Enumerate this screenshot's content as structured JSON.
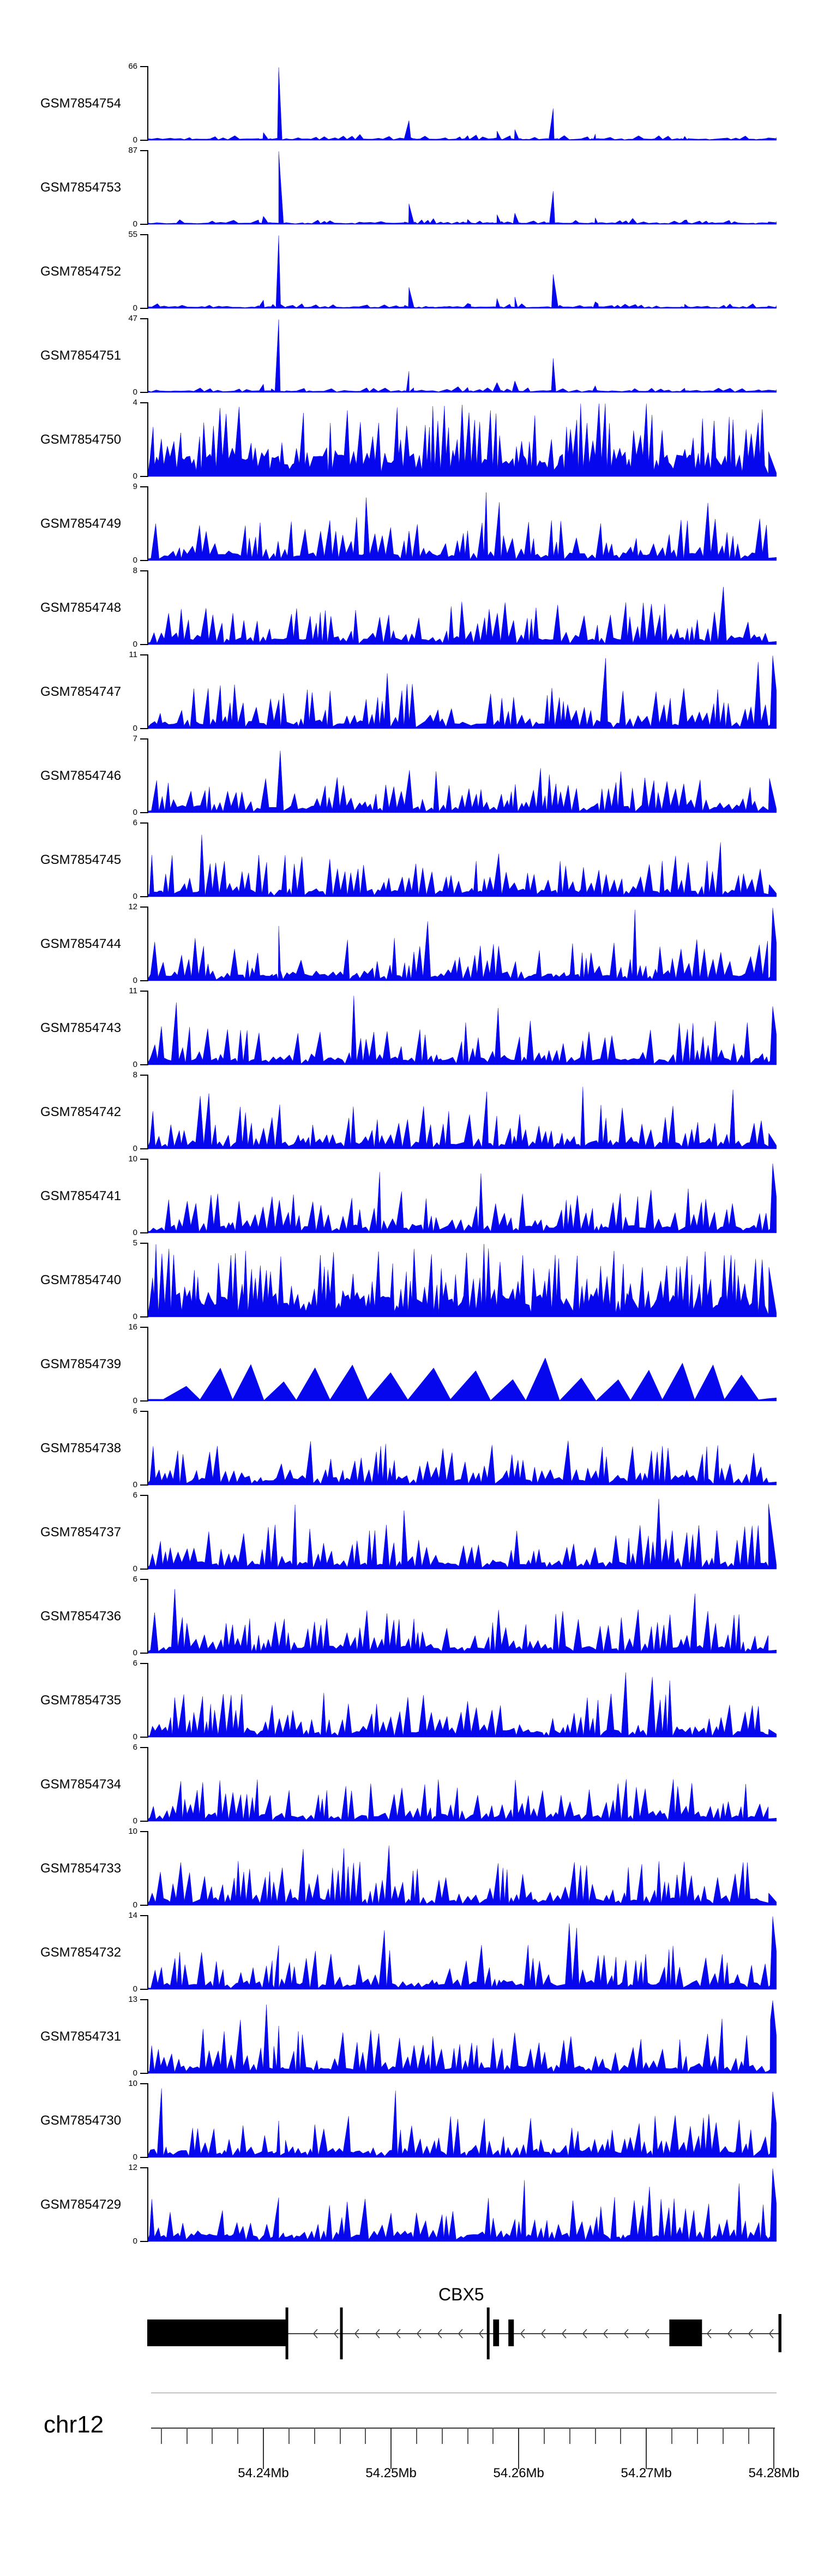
{
  "chart_data": {
    "type": "area",
    "description": "Genome browser coverage tracks",
    "signal_color": "#0707ee",
    "genome": {
      "chromosome": "chr12",
      "x_unit": "Mb",
      "x_range": [
        54.2309,
        54.2802
      ],
      "major_ticks": [
        54.24,
        54.25,
        54.26,
        54.27,
        54.28
      ],
      "major_tick_labels": [
        "54.24Mb",
        "54.25Mb",
        "54.26Mb",
        "54.27Mb",
        "54.28Mb"
      ],
      "minor_tick_step": 0.002
    },
    "shared_peaks_sparse": [
      {
        "mb": 54.24,
        "f": 0.1,
        "w": 8
      },
      {
        "mb": 54.2412,
        "f": 1.0,
        "w": 14
      },
      {
        "mb": 54.2514,
        "f": 0.26,
        "w": 9
      },
      {
        "mb": 54.256,
        "f": 0.06,
        "w": 6
      },
      {
        "mb": 54.2583,
        "f": 0.12,
        "w": 7
      },
      {
        "mb": 54.2597,
        "f": 0.14,
        "w": 7
      },
      {
        "mb": 54.2627,
        "f": 0.42,
        "w": 9
      },
      {
        "mb": 54.266,
        "f": 0.08,
        "w": 6
      },
      {
        "mb": 54.273,
        "f": 0.05,
        "w": 6
      },
      {
        "mb": 54.2806,
        "f": 0.13,
        "w": 10
      }
    ],
    "tracks": [
      {
        "label": "GSM7854754",
        "ymin": 0,
        "ymax": 66,
        "profile": "sparse",
        "seed": 11
      },
      {
        "label": "GSM7854753",
        "ymin": 0,
        "ymax": 87,
        "profile": "sparse",
        "seed": 23
      },
      {
        "label": "GSM7854752",
        "ymin": 0,
        "ymax": 55,
        "profile": "sparse",
        "seed": 37
      },
      {
        "label": "GSM7854751",
        "ymin": 0,
        "ymax": 47,
        "profile": "sparse",
        "seed": 49
      },
      {
        "label": "GSM7854750",
        "ymin": 0,
        "ymax": 4,
        "profile": "densefull",
        "seed": 61
      },
      {
        "label": "GSM7854749",
        "ymin": 0,
        "ymax": 9,
        "profile": "dense",
        "seed": 73
      },
      {
        "label": "GSM7854748",
        "ymin": 0,
        "ymax": 8,
        "profile": "dense",
        "seed": 85
      },
      {
        "label": "GSM7854747",
        "ymin": 0,
        "ymax": 11,
        "profile": "dense",
        "seed": 97,
        "edge_spike": 1.0
      },
      {
        "label": "GSM7854746",
        "ymin": 0,
        "ymax": 7,
        "profile": "dense",
        "seed": 109
      },
      {
        "label": "GSM7854745",
        "ymin": 0,
        "ymax": 6,
        "profile": "dense",
        "seed": 121
      },
      {
        "label": "GSM7854744",
        "ymin": 0,
        "ymax": 12,
        "profile": "dense",
        "seed": 133,
        "edge_spike": 1.0,
        "promoter_peak": 0.75
      },
      {
        "label": "GSM7854743",
        "ymin": 0,
        "ymax": 11,
        "profile": "dense",
        "seed": 145,
        "edge_spike": 0.8
      },
      {
        "label": "GSM7854742",
        "ymin": 0,
        "ymax": 8,
        "profile": "dense",
        "seed": 157
      },
      {
        "label": "GSM7854741",
        "ymin": 0,
        "ymax": 10,
        "profile": "dense",
        "seed": 169,
        "edge_spike": 0.95
      },
      {
        "label": "GSM7854740",
        "ymin": 0,
        "ymax": 5,
        "profile": "densefull",
        "seed": 181
      },
      {
        "label": "GSM7854739",
        "ymin": 0,
        "ymax": 16,
        "profile": "triangles",
        "seed": 193
      },
      {
        "label": "GSM7854738",
        "ymin": 0,
        "ymax": 6,
        "profile": "dense",
        "seed": 205
      },
      {
        "label": "GSM7854737",
        "ymin": 0,
        "ymax": 6,
        "profile": "dense",
        "seed": 217
      },
      {
        "label": "GSM7854736",
        "ymin": 0,
        "ymax": 6,
        "profile": "dense",
        "seed": 229
      },
      {
        "label": "GSM7854735",
        "ymin": 0,
        "ymax": 6,
        "profile": "dense",
        "seed": 241
      },
      {
        "label": "GSM7854734",
        "ymin": 0,
        "ymax": 6,
        "profile": "dense",
        "seed": 253
      },
      {
        "label": "GSM7854733",
        "ymin": 0,
        "ymax": 10,
        "profile": "dense",
        "seed": 265
      },
      {
        "label": "GSM7854732",
        "ymin": 0,
        "ymax": 14,
        "profile": "dense",
        "seed": 277,
        "edge_spike": 1.0,
        "promoter_peak": 0.6
      },
      {
        "label": "GSM7854731",
        "ymin": 0,
        "ymax": 13,
        "profile": "dense",
        "seed": 289,
        "edge_spike": 1.0,
        "promoter_peak": 0.65
      },
      {
        "label": "GSM7854730",
        "ymin": 0,
        "ymax": 10,
        "profile": "dense",
        "seed": 301,
        "edge_spike": 0.9,
        "promoter_peak": 0.5
      },
      {
        "label": "GSM7854729",
        "ymin": 0,
        "ymax": 12,
        "profile": "dense",
        "seed": 313,
        "edge_spike": 1.0,
        "promoter_peak": 0.6
      }
    ],
    "gene_track": {
      "gene_name": "CBX5",
      "strand": "-",
      "intron": [
        54.24179,
        54.28056
      ],
      "thick_exons": [
        [
          54.2309,
          54.24179
        ],
        [
          54.258,
          54.25846
        ],
        [
          54.25919,
          54.25962
        ],
        [
          54.2718,
          54.27436
        ]
      ],
      "tall_exons": [
        54.24184,
        54.24611,
        54.25761
      ],
      "end_exon": [
        54.28035,
        54.28058
      ]
    }
  }
}
